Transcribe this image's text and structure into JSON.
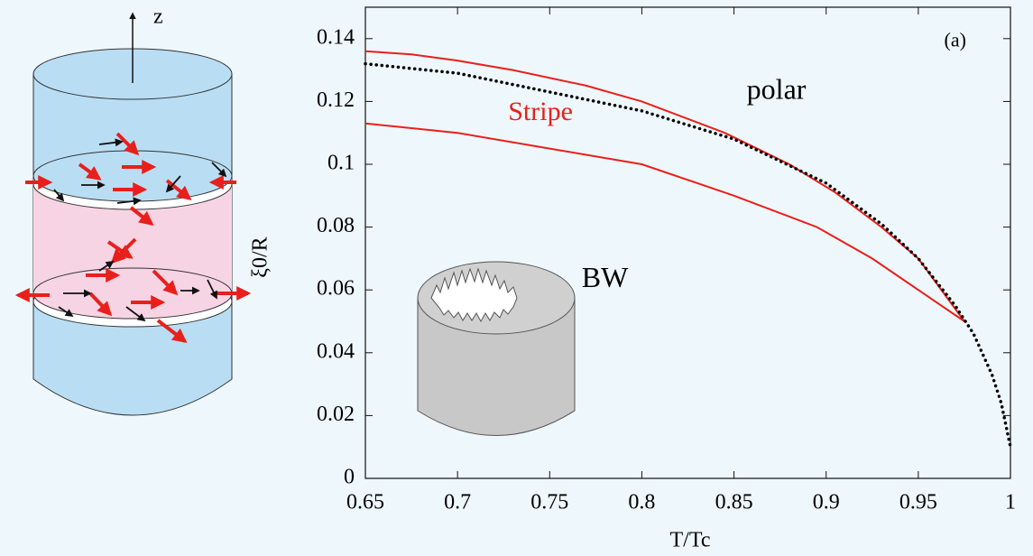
{
  "illustration": {
    "axis_label": "z"
  },
  "chart_data": {
    "type": "line",
    "x_label": "T/Tc",
    "y_label": "ξ0/R",
    "xlim": [
      0.65,
      1
    ],
    "ylim": [
      0,
      0.15
    ],
    "xticks": [
      0.65,
      0.7,
      0.75,
      0.8,
      0.85,
      0.9,
      0.95,
      1
    ],
    "yticks": [
      0,
      0.02,
      0.04,
      0.06,
      0.08,
      0.1,
      0.12,
      0.14
    ],
    "annotations": [
      {
        "text": "(a)",
        "x": 0.97,
        "y": 0.139,
        "color": "#000000"
      },
      {
        "text": "polar",
        "x": 0.873,
        "y": 0.123,
        "color": "#000000"
      },
      {
        "text": "Stripe",
        "x": 0.745,
        "y": 0.116,
        "color": "#e8201c"
      },
      {
        "text": "BW",
        "x": 0.78,
        "y": 0.063,
        "color": "#000000"
      }
    ],
    "series": [
      {
        "color": "#e8201c",
        "style": "solid",
        "x": [
          0.65,
          0.675,
          0.7,
          0.73,
          0.77,
          0.8,
          0.845,
          0.88,
          0.905,
          0.93,
          0.95,
          0.975
        ],
        "values": [
          0.136,
          0.135,
          0.133,
          0.13,
          0.125,
          0.12,
          0.11,
          0.1,
          0.091,
          0.08,
          0.07,
          0.05
        ]
      },
      {
        "color": "#e8201c",
        "style": "solid",
        "x": [
          0.65,
          0.7,
          0.75,
          0.8,
          0.85,
          0.895,
          0.925,
          0.975
        ],
        "values": [
          0.113,
          0.11,
          0.105,
          0.1,
          0.09,
          0.08,
          0.07,
          0.05
        ]
      },
      {
        "color": "#000000",
        "style": "dotted",
        "x": [
          0.65,
          0.7,
          0.75,
          0.8,
          0.85,
          0.9,
          0.93,
          0.95,
          0.97,
          0.98,
          0.99,
          0.995,
          1
        ],
        "values": [
          0.132,
          0.129,
          0.123,
          0.117,
          0.108,
          0.094,
          0.081,
          0.07,
          0.055,
          0.046,
          0.033,
          0.024,
          0.01
        ]
      }
    ]
  }
}
